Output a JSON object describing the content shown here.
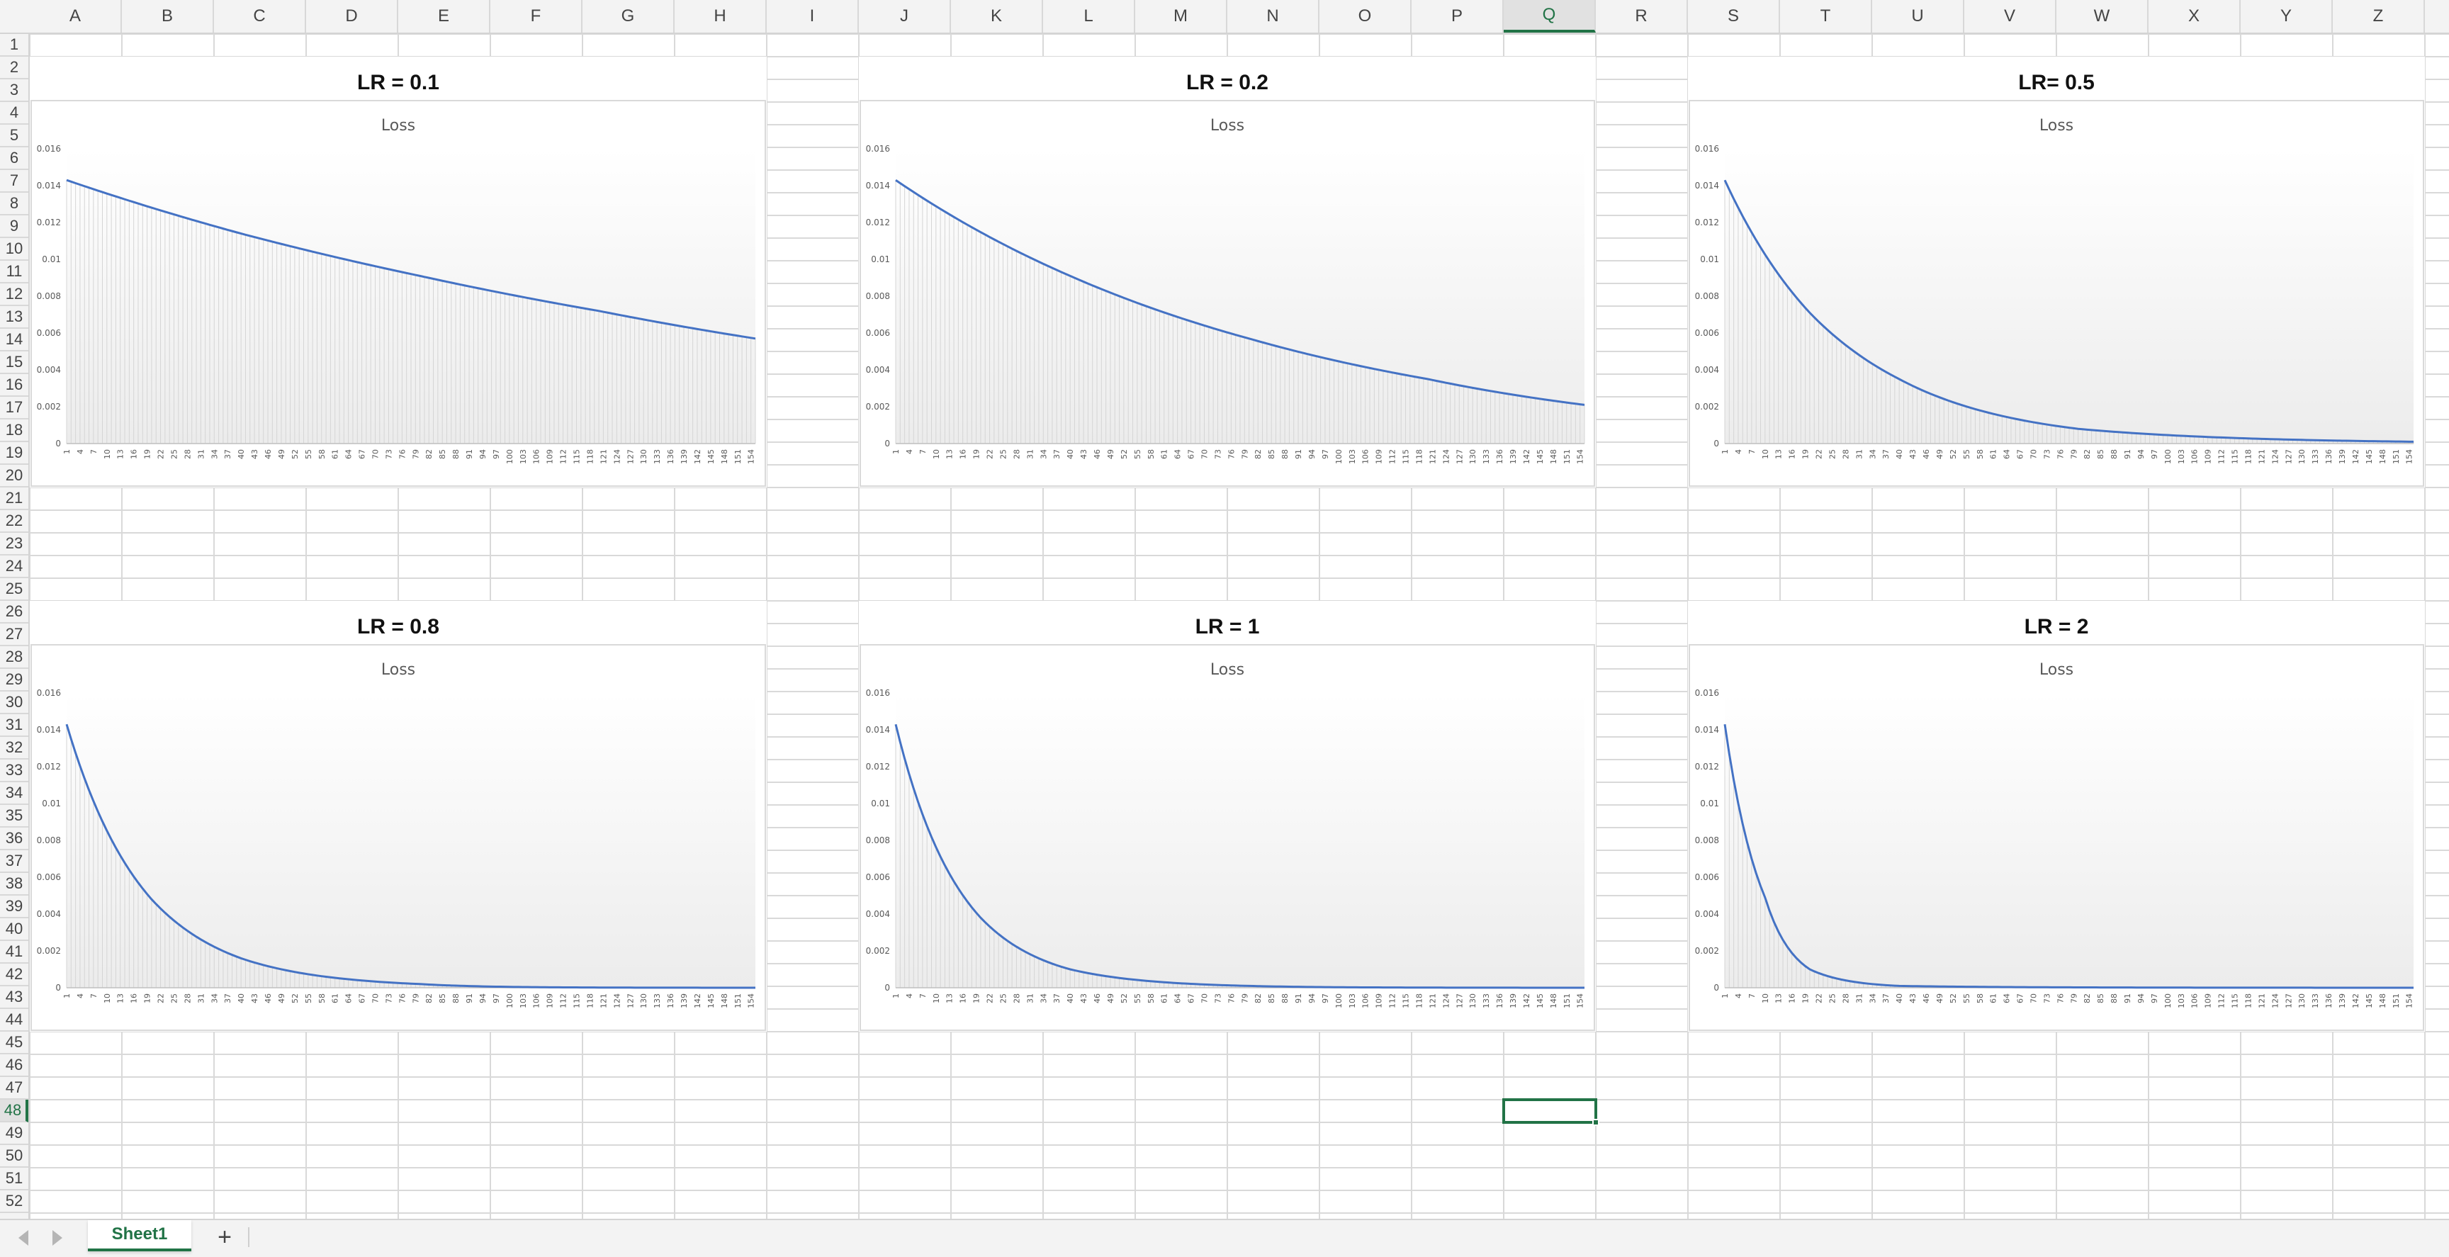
{
  "spreadsheet": {
    "columns": [
      "A",
      "B",
      "C",
      "D",
      "E",
      "F",
      "G",
      "H",
      "I",
      "J",
      "K",
      "L",
      "M",
      "N",
      "O",
      "P",
      "Q",
      "R",
      "S",
      "T",
      "U",
      "V",
      "W",
      "X",
      "Y",
      "Z"
    ],
    "rows": [
      "1",
      "2",
      "3",
      "4",
      "5",
      "6",
      "7",
      "8",
      "9",
      "10",
      "11",
      "12",
      "13",
      "14",
      "15",
      "16",
      "17",
      "18",
      "19",
      "20",
      "21",
      "22",
      "23",
      "24",
      "25",
      "26",
      "27",
      "28",
      "29",
      "30",
      "31",
      "32",
      "33",
      "34",
      "35",
      "36",
      "37",
      "38",
      "39",
      "40",
      "41",
      "42",
      "43",
      "44",
      "45",
      "46",
      "47",
      "48",
      "49",
      "50",
      "51",
      "52"
    ],
    "active_column": "Q",
    "active_row": "48",
    "sheet_tabs": [
      {
        "label": "Sheet1",
        "active": true
      }
    ],
    "add_sheet_label": "+",
    "colors": {
      "accent": "#217346",
      "series": "#4472c4",
      "gridline": "#d9d9d9"
    },
    "icons": {
      "prev_sheet": "triangle-left-icon",
      "next_sheet": "triangle-right-icon",
      "add_sheet": "plus-icon"
    }
  },
  "charts": [
    {
      "lr_title": "LR = 0.1",
      "chart_title": "Loss"
    },
    {
      "lr_title": "LR = 0.2",
      "chart_title": "Loss"
    },
    {
      "lr_title": "LR= 0.5",
      "chart_title": "Loss"
    },
    {
      "lr_title": "LR = 0.8",
      "chart_title": "Loss"
    },
    {
      "lr_title": "LR = 1",
      "chart_title": "Loss"
    },
    {
      "lr_title": "LR = 2",
      "chart_title": "Loss"
    }
  ],
  "chart_data": [
    {
      "type": "area",
      "title": "Loss",
      "lr": 0.1,
      "ylim": [
        0,
        0.016
      ],
      "yticks": [
        "0",
        "0.002",
        "0.004",
        "0.006",
        "0.008",
        "0.01",
        "0.012",
        "0.014",
        "0.016"
      ],
      "x_start": 1,
      "x_end": 155,
      "xtick_step": 3,
      "series": [
        {
          "values_sampled": {
            "x": [
              1,
              40,
              80,
              120,
              155
            ],
            "y": [
              0.0143,
              0.0114,
              0.0091,
              0.0072,
              0.0057
            ]
          }
        }
      ]
    },
    {
      "type": "area",
      "title": "Loss",
      "lr": 0.2,
      "ylim": [
        0,
        0.016
      ],
      "yticks": [
        "0",
        "0.002",
        "0.004",
        "0.006",
        "0.008",
        "0.01",
        "0.012",
        "0.014",
        "0.016"
      ],
      "x_start": 1,
      "x_end": 155,
      "xtick_step": 3,
      "series": [
        {
          "values_sampled": {
            "x": [
              1,
              40,
              80,
              120,
              155
            ],
            "y": [
              0.0143,
              0.0091,
              0.0057,
              0.0035,
              0.0021
            ]
          }
        }
      ]
    },
    {
      "type": "area",
      "title": "Loss",
      "lr": 0.5,
      "ylim": [
        0,
        0.016
      ],
      "yticks": [
        "0",
        "0.002",
        "0.004",
        "0.006",
        "0.008",
        "0.01",
        "0.012",
        "0.014",
        "0.016"
      ],
      "x_start": 1,
      "x_end": 155,
      "xtick_step": 3,
      "series": [
        {
          "values_sampled": {
            "x": [
              1,
              20,
              40,
              80,
              155
            ],
            "y": [
              0.0143,
              0.0071,
              0.0035,
              0.0008,
              0.0001
            ]
          }
        }
      ]
    },
    {
      "type": "area",
      "title": "Loss",
      "lr": 0.8,
      "ylim": [
        0,
        0.016
      ],
      "yticks": [
        "0",
        "0.002",
        "0.004",
        "0.006",
        "0.008",
        "0.01",
        "0.012",
        "0.014",
        "0.016"
      ],
      "x_start": 1,
      "x_end": 155,
      "xtick_step": 3,
      "series": [
        {
          "values_sampled": {
            "x": [
              1,
              20,
              40,
              80,
              155
            ],
            "y": [
              0.0143,
              0.0048,
              0.0016,
              0.0002,
              0.0
            ]
          }
        }
      ]
    },
    {
      "type": "area",
      "title": "Loss",
      "lr": 1,
      "ylim": [
        0,
        0.016
      ],
      "yticks": [
        "0",
        "0.002",
        "0.004",
        "0.006",
        "0.008",
        "0.01",
        "0.012",
        "0.014",
        "0.016"
      ],
      "x_start": 1,
      "x_end": 155,
      "xtick_step": 3,
      "series": [
        {
          "values_sampled": {
            "x": [
              1,
              20,
              40,
              80,
              155
            ],
            "y": [
              0.0143,
              0.0038,
              0.001,
              0.0001,
              0.0
            ]
          }
        }
      ]
    },
    {
      "type": "area",
      "title": "Loss",
      "lr": 2,
      "ylim": [
        0,
        0.016
      ],
      "yticks": [
        "0",
        "0.002",
        "0.004",
        "0.006",
        "0.008",
        "0.01",
        "0.012",
        "0.014",
        "0.016"
      ],
      "x_start": 1,
      "x_end": 155,
      "xtick_step": 3,
      "series": [
        {
          "values_sampled": {
            "x": [
              1,
              10,
              20,
              40,
              155
            ],
            "y": [
              0.0143,
              0.0049,
              0.001,
              0.0001,
              0.0
            ]
          }
        }
      ]
    }
  ]
}
